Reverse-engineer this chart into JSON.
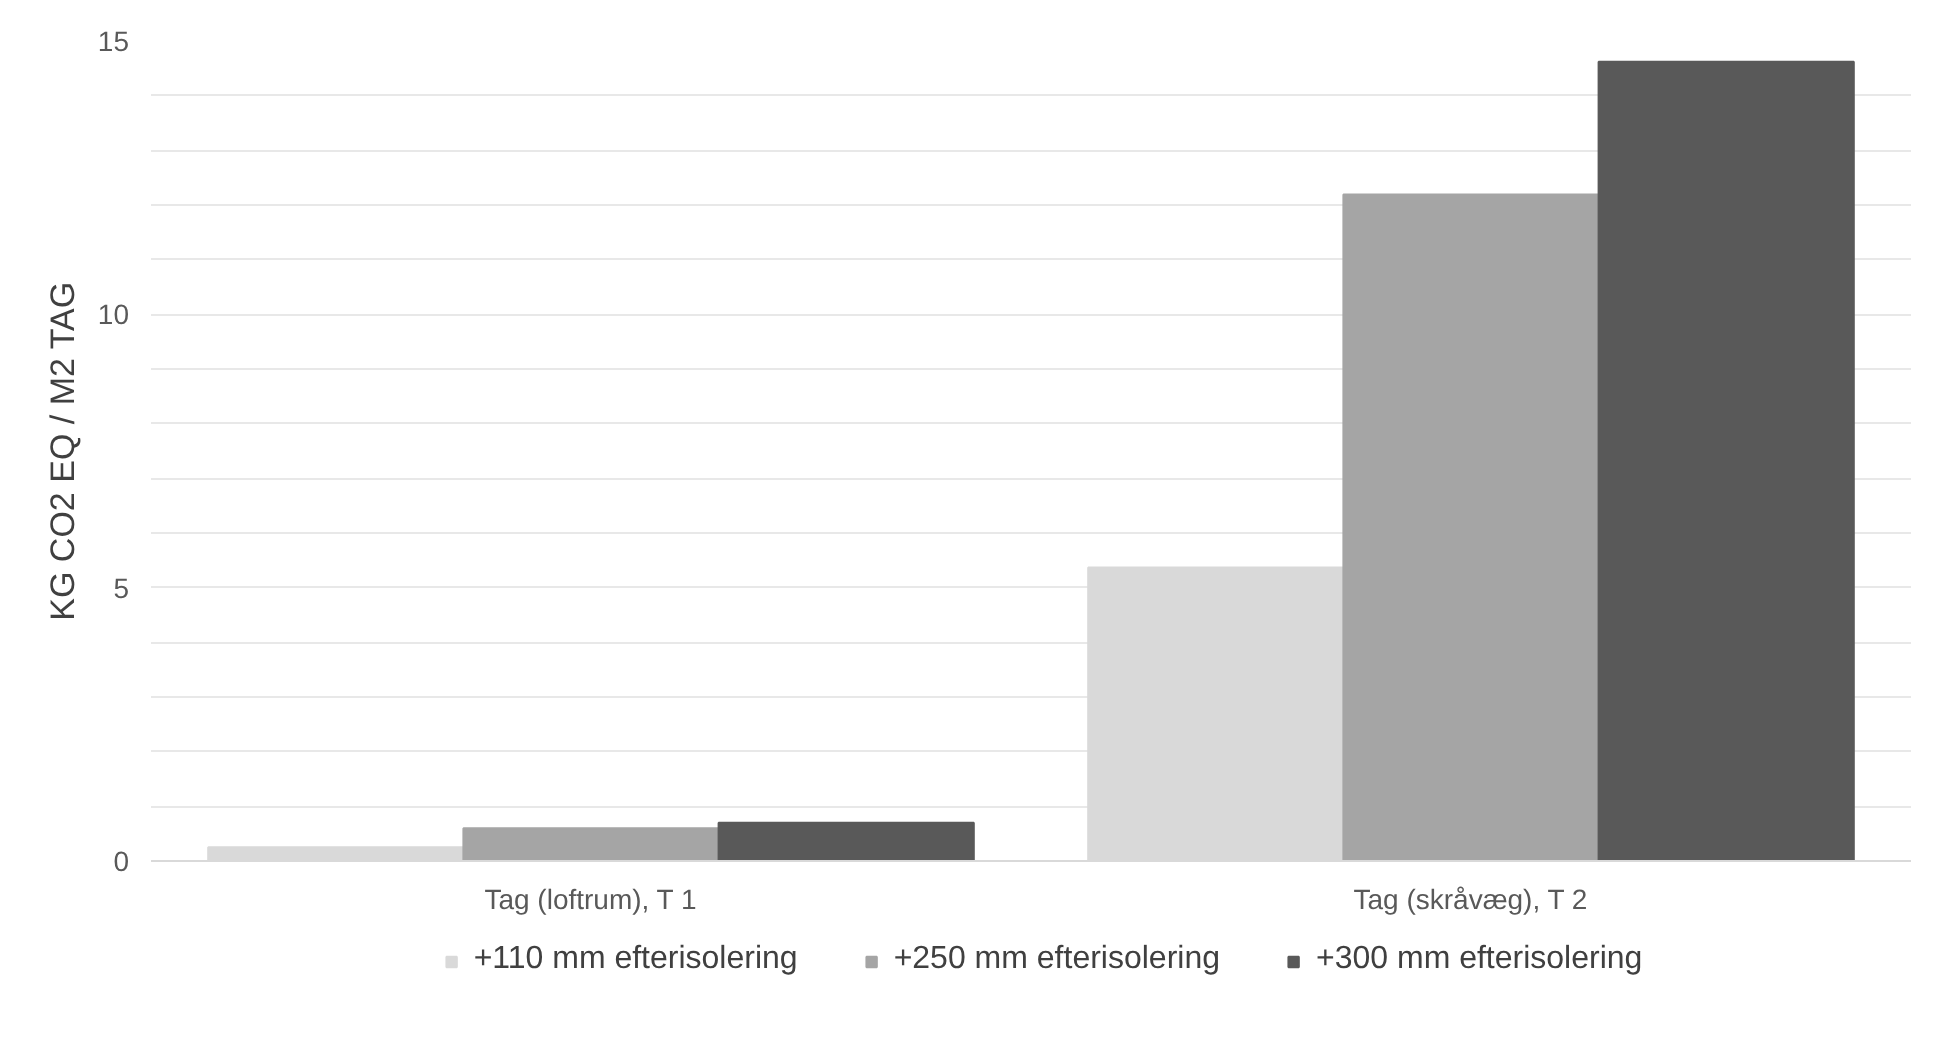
{
  "chart_data": {
    "type": "bar",
    "ylabel": "KG CO2 EQ / M2 TAG",
    "categories": [
      "Tag (loftrum), T 1",
      "Tag (skråvæg), T 2"
    ],
    "series": [
      {
        "name": "+110 mm efterisolering",
        "color": "#d9d9d9",
        "values": [
          0.25,
          5.37
        ]
      },
      {
        "name": "+250 mm efterisolering",
        "color": "#a5a5a5",
        "values": [
          0.6,
          12.19
        ]
      },
      {
        "name": "+300 mm efterisolering",
        "color": "#595959",
        "values": [
          0.7,
          14.62
        ]
      }
    ],
    "ylim": [
      0,
      15
    ],
    "yticks": [
      0,
      {
        "value": 1,
        "label": null
      },
      {
        "value": 2,
        "label": null
      },
      {
        "value": 3,
        "label": null
      },
      {
        "value": 4,
        "label": null
      },
      5,
      {
        "value": 6,
        "label": null
      },
      {
        "value": 7,
        "label": null
      },
      {
        "value": 8,
        "label": null
      },
      {
        "value": 9,
        "label": null
      },
      10,
      {
        "value": 11,
        "label": null
      },
      {
        "value": 12,
        "label": null
      },
      {
        "value": 13,
        "label": null
      },
      {
        "value": 14,
        "label": null
      },
      15
    ],
    "grid": true,
    "legend": "bottom"
  }
}
